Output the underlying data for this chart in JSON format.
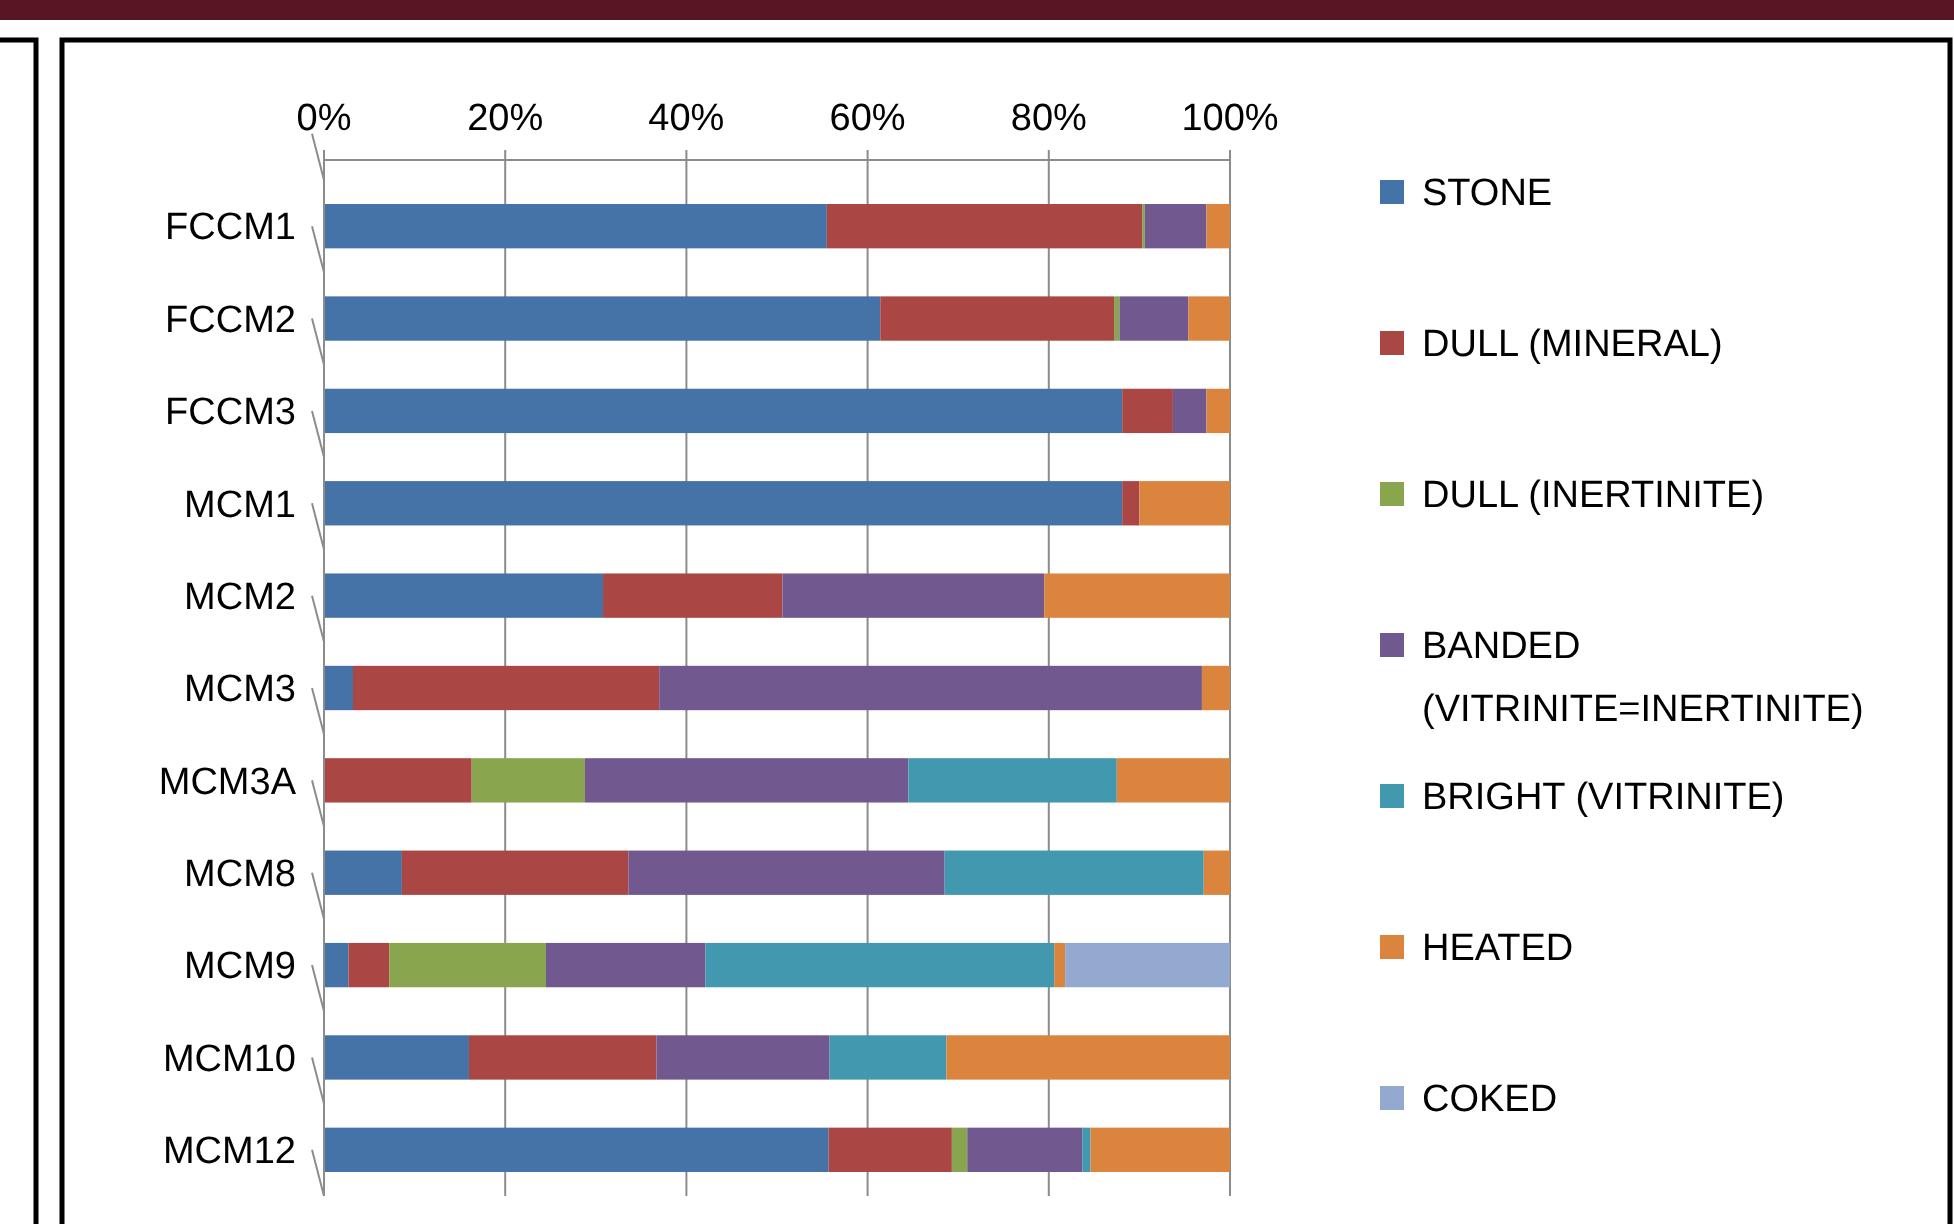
{
  "chart_data": {
    "type": "bar",
    "orientation": "horizontal",
    "stacked": true,
    "categories": [
      "FCCM1",
      "FCCM2",
      "FCCM3",
      "MCM1",
      "MCM2",
      "MCM3",
      "MCM3A",
      "MCM8",
      "MCM9",
      "MCM10",
      "MCM12"
    ],
    "series": [
      {
        "name": "STONE",
        "color": "#4572a7",
        "values": [
          55.5,
          61.4,
          88.1,
          88.1,
          30.8,
          3.2,
          0,
          8.6,
          2.7,
          16.0,
          55.7
        ]
      },
      {
        "name": "DULL (MINERAL)",
        "color": "#aa4643",
        "values": [
          34.8,
          25.8,
          5.6,
          1.9,
          19.8,
          33.8,
          16.3,
          25.0,
          4.5,
          20.7,
          13.6
        ]
      },
      {
        "name": "DULL (INERTINITE)",
        "color": "#89a54e",
        "values": [
          0.3,
          0.6,
          0,
          0,
          0,
          0,
          12.5,
          0,
          17.3,
          0,
          1.7
        ]
      },
      {
        "name": "BANDED (VITRINITE=INERTINITE)",
        "color": "#71588f",
        "values": [
          6.8,
          7.6,
          3.7,
          0,
          28.9,
          59.9,
          35.7,
          34.9,
          17.6,
          19.1,
          12.7
        ]
      },
      {
        "name": "BRIGHT (VITRINITE)",
        "color": "#4198af",
        "values": [
          0,
          0,
          0,
          0,
          0,
          0,
          23.0,
          28.6,
          38.5,
          12.9,
          0.9
        ]
      },
      {
        "name": "HEATED",
        "color": "#db843d",
        "values": [
          2.6,
          4.6,
          2.6,
          10.0,
          20.5,
          3.1,
          12.5,
          2.9,
          1.2,
          31.3,
          15.4
        ]
      },
      {
        "name": "COKED",
        "color": "#93a9cf",
        "values": [
          0,
          0,
          0,
          0,
          0,
          0,
          0,
          0,
          18.2,
          0,
          0
        ]
      }
    ],
    "xlim": [
      0,
      100
    ],
    "xticks": [
      {
        "value": 0,
        "label": "0%"
      },
      {
        "value": 20,
        "label": "20%"
      },
      {
        "value": 40,
        "label": "40%"
      },
      {
        "value": 60,
        "label": "60%"
      },
      {
        "value": 80,
        "label": "80%"
      },
      {
        "value": 100,
        "label": "100%"
      }
    ],
    "grid": "x",
    "legend": "right"
  }
}
